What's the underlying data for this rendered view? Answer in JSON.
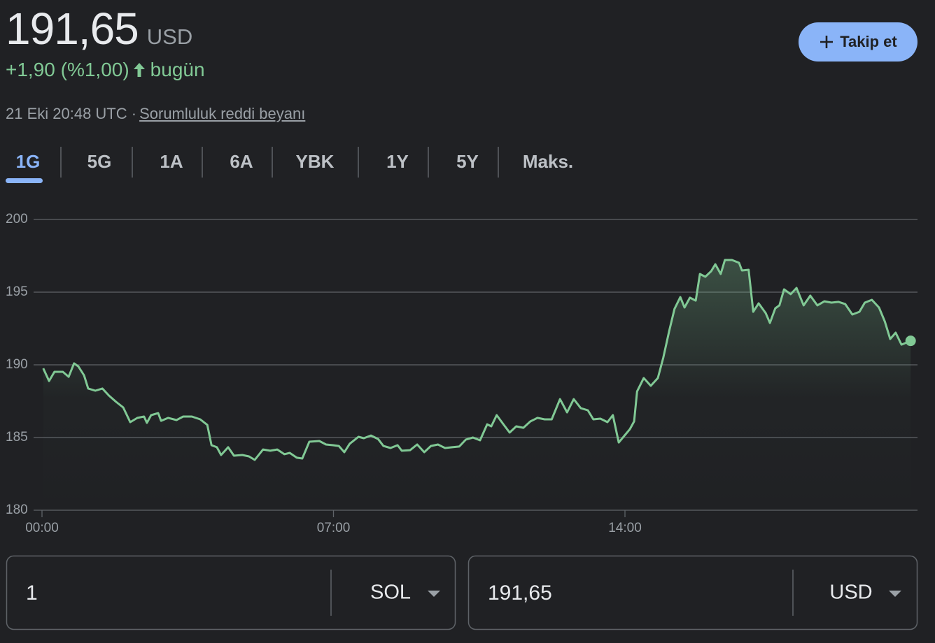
{
  "header": {
    "price": "191,65",
    "currency": "USD",
    "change": "+1,90 (%1,00)",
    "period": "bugün",
    "timestamp": "21 Eki 20:48 UTC ·",
    "disclaimer": "Sorumluluk reddi beyanı"
  },
  "follow_button": "Takip et",
  "tabs": [
    "1G",
    "5G",
    "1A",
    "6A",
    "YBK",
    "1Y",
    "5Y",
    "Maks."
  ],
  "chart_data": {
    "type": "line",
    "color": "#81c995",
    "grid": true,
    "x": [
      0.03,
      0.17,
      0.3,
      0.5,
      0.64,
      0.77,
      0.87,
      1.01,
      1.11,
      1.28,
      1.45,
      1.61,
      1.78,
      1.95,
      2.12,
      2.29,
      2.45,
      2.52,
      2.62,
      2.79,
      2.86,
      3.03,
      3.23,
      3.39,
      3.6,
      3.8,
      3.97,
      4.07,
      4.2,
      4.3,
      4.47,
      4.61,
      4.81,
      4.97,
      5.11,
      5.31,
      5.48,
      5.65,
      5.82,
      5.95,
      6.12,
      6.25,
      6.42,
      6.66,
      6.82,
      6.99,
      7.13,
      7.26,
      7.39,
      7.6,
      7.73,
      7.9,
      8.07,
      8.2,
      8.37,
      8.54,
      8.64,
      8.84,
      9.01,
      9.18,
      9.34,
      9.51,
      9.68,
      9.85,
      10.02,
      10.18,
      10.35,
      10.52,
      10.69,
      10.79,
      10.92,
      11.09,
      11.23,
      11.39,
      11.56,
      11.73,
      11.9,
      12.07,
      12.24,
      12.44,
      12.61,
      12.77,
      12.94,
      13.11,
      13.24,
      13.41,
      13.58,
      13.71,
      13.85,
      13.98,
      14.12,
      14.22,
      14.29,
      14.45,
      14.62,
      14.79,
      14.92,
      15.06,
      15.19,
      15.33,
      15.43,
      15.56,
      15.7,
      15.8,
      15.93,
      16.07,
      16.17,
      16.3,
      16.4,
      16.57,
      16.74,
      16.81,
      16.97,
      17.08,
      17.21,
      17.38,
      17.48,
      17.61,
      17.71,
      17.82,
      17.98,
      18.12,
      18.29,
      18.45,
      18.62,
      18.79,
      18.96,
      19.13,
      19.29,
      19.46,
      19.63,
      19.76,
      19.93,
      20.1,
      20.24,
      20.37,
      20.5,
      20.64,
      20.86
    ],
    "values": [
      189.76,
      188.89,
      189.52,
      189.52,
      189.18,
      190.1,
      189.9,
      189.28,
      188.37,
      188.22,
      188.37,
      187.88,
      187.45,
      187.07,
      186.06,
      186.35,
      186.44,
      186.01,
      186.54,
      186.68,
      186.15,
      186.35,
      186.2,
      186.44,
      186.44,
      186.25,
      185.87,
      184.47,
      184.33,
      183.8,
      184.33,
      183.75,
      183.8,
      183.7,
      183.46,
      184.18,
      184.09,
      184.18,
      183.85,
      183.94,
      183.61,
      183.56,
      184.71,
      184.76,
      184.52,
      184.47,
      184.42,
      183.99,
      184.57,
      185.05,
      184.95,
      185.14,
      184.9,
      184.42,
      184.28,
      184.47,
      184.09,
      184.13,
      184.52,
      183.99,
      184.42,
      184.52,
      184.28,
      184.33,
      184.38,
      184.86,
      185.0,
      184.81,
      185.91,
      185.77,
      186.54,
      185.87,
      185.34,
      185.77,
      185.67,
      186.11,
      186.35,
      186.25,
      186.25,
      187.64,
      186.73,
      187.64,
      187.02,
      186.87,
      186.25,
      186.3,
      186.06,
      186.54,
      184.66,
      185.1,
      185.58,
      186.11,
      188.17,
      189.09,
      188.56,
      189.09,
      190.48,
      192.31,
      193.85,
      194.66,
      193.94,
      194.62,
      194.42,
      196.25,
      196.06,
      196.44,
      196.92,
      196.25,
      197.21,
      197.21,
      197.02,
      196.49,
      196.54,
      193.65,
      194.23,
      193.56,
      192.88,
      193.89,
      194.09,
      195.19,
      194.86,
      195.29,
      194.09,
      194.76,
      194.09,
      194.37,
      194.28,
      194.33,
      194.18,
      193.46,
      193.65,
      194.28,
      194.47,
      193.94,
      192.98,
      191.78,
      192.21,
      191.39,
      191.65
    ],
    "xlim": [
      0,
      21
    ],
    "xticks": [
      {
        "value": 0,
        "label": "00:00"
      },
      {
        "value": 7,
        "label": "07:00"
      },
      {
        "value": 14,
        "label": "14:00"
      }
    ],
    "ylim": [
      180,
      200
    ],
    "yticks": [
      180,
      185,
      190,
      195,
      200
    ]
  },
  "converter": {
    "from_amount": "1",
    "from_unit": "SOL",
    "to_amount": "191,65",
    "to_unit": "USD"
  }
}
